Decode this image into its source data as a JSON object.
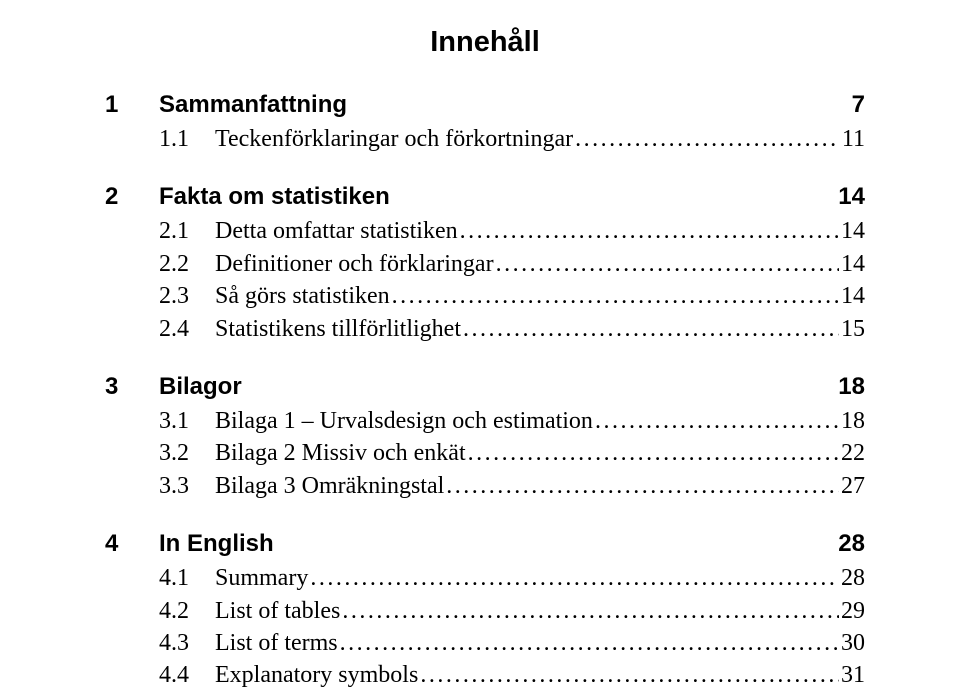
{
  "title": "Innehåll",
  "sections": [
    {
      "num": "1",
      "text": "Sammanfattning",
      "page": "7",
      "entries": [
        {
          "num": "1.1",
          "text": "Teckenförklaringar och förkortningar",
          "page": "11"
        }
      ]
    },
    {
      "num": "2",
      "text": "Fakta om statistiken",
      "page": "14",
      "entries": [
        {
          "num": "2.1",
          "text": "Detta omfattar statistiken",
          "page": "14"
        },
        {
          "num": "2.2",
          "text": "Definitioner och förklaringar",
          "page": "14"
        },
        {
          "num": "2.3",
          "text": "Så görs statistiken",
          "page": "14"
        },
        {
          "num": "2.4",
          "text": "Statistikens tillförlitlighet",
          "page": "15"
        }
      ]
    },
    {
      "num": "3",
      "text": "Bilagor",
      "page": "18",
      "entries": [
        {
          "num": "3.1",
          "text": "Bilaga 1 – Urvalsdesign och estimation",
          "page": "18"
        },
        {
          "num": "3.2",
          "text": "Bilaga 2 Missiv och enkät",
          "page": "22"
        },
        {
          "num": "3.3",
          "text": "Bilaga 3 Omräkningstal",
          "page": "27"
        }
      ]
    },
    {
      "num": "4",
      "text": "In English",
      "page": "28",
      "entries": [
        {
          "num": "4.1",
          "text": "Summary",
          "page": "28"
        },
        {
          "num": "4.2",
          "text": "List of tables",
          "page": "29"
        },
        {
          "num": "4.3",
          "text": "List of terms",
          "page": "30"
        },
        {
          "num": "4.4",
          "text": "Explanatory symbols",
          "page": "31"
        }
      ]
    }
  ],
  "style": {
    "dot_leader": "....................................................................................................................",
    "title_fontsize": 29,
    "heading_fontsize": 24,
    "entry_fontsize": 24,
    "text_color": "#000000",
    "background_color": "#ffffff"
  }
}
